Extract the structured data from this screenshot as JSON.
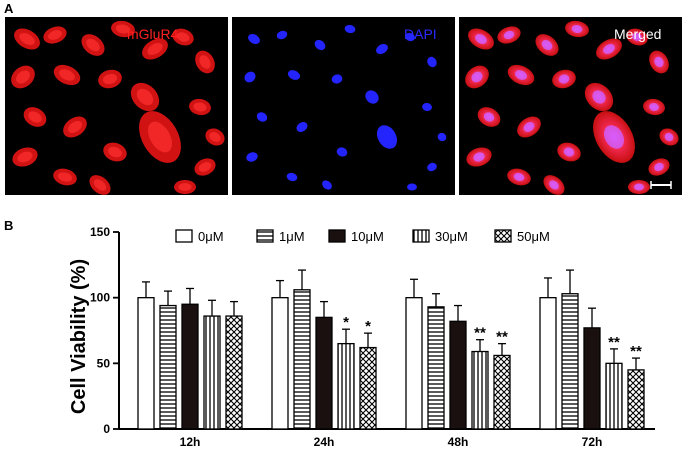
{
  "figure": {
    "panel_a_label": "A",
    "panel_b_label": "B"
  },
  "panel_a": {
    "images": [
      {
        "title": "mGluR4",
        "color": "#ff2020"
      },
      {
        "title": "DAPI",
        "color": "#2a2aff"
      },
      {
        "title": "Merged",
        "color": "#ffffff"
      }
    ],
    "scale_bar": "scale-bar"
  },
  "chart_data": {
    "type": "bar",
    "title": "",
    "xlabel": "",
    "ylabel": "Cell Viability (%)",
    "ylim": [
      0,
      150
    ],
    "yticks": [
      0,
      50,
      100,
      150
    ],
    "grid": false,
    "legend_position": "top",
    "categories": [
      "12h",
      "24h",
      "48h",
      "72h"
    ],
    "series": [
      {
        "name": "0μM",
        "pattern": "open",
        "values": [
          100,
          100,
          100,
          100
        ],
        "errors": [
          12,
          13,
          14,
          15
        ],
        "annotations": [
          "",
          "",
          "",
          ""
        ]
      },
      {
        "name": "1μM",
        "pattern": "horizontal",
        "values": [
          94,
          106,
          93,
          103
        ],
        "errors": [
          11,
          15,
          10,
          18
        ],
        "annotations": [
          "",
          "",
          "",
          ""
        ]
      },
      {
        "name": "10μM",
        "pattern": "solid",
        "values": [
          95,
          85,
          82,
          77
        ],
        "errors": [
          12,
          12,
          12,
          15
        ],
        "annotations": [
          "",
          "",
          "",
          ""
        ]
      },
      {
        "name": "30μM",
        "pattern": "vertical",
        "values": [
          86,
          65,
          59,
          50
        ],
        "errors": [
          12,
          11,
          9,
          11
        ],
        "annotations": [
          "",
          "*",
          "**",
          "**"
        ]
      },
      {
        "name": "50μM",
        "pattern": "crosshatch",
        "values": [
          86,
          62,
          56,
          45
        ],
        "errors": [
          11,
          11,
          9,
          9
        ],
        "annotations": [
          "",
          "*",
          "**",
          "**"
        ]
      }
    ]
  }
}
